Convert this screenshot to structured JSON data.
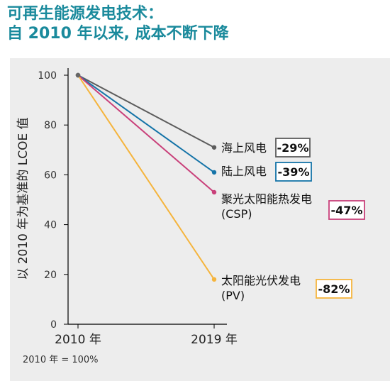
{
  "title_line1": "可再生能源发电技术：",
  "title_line2": "自  2010  年以来, 成本不断下降",
  "footnote": "2010 年 = 100%",
  "chart_data": {
    "type": "line",
    "title": "可再生能源发电技术： 自 2010 年以来, 成本不断下降",
    "ylabel": "以 2010 年为基准的 LCOE 值",
    "categories": [
      "2010 年",
      "2019 年"
    ],
    "ylim": [
      0,
      100
    ],
    "yticks": [
      0,
      20,
      40,
      60,
      80,
      100
    ],
    "series": [
      {
        "name": "海上风电",
        "label2": "",
        "values": [
          100,
          71
        ],
        "change": "-29%",
        "color": "#5c5c5c"
      },
      {
        "name": "陆上风电",
        "label2": "",
        "values": [
          100,
          61
        ],
        "change": "-39%",
        "color": "#1574a8"
      },
      {
        "name": "聚光太阳能热发电",
        "label2": "(CSP)",
        "values": [
          100,
          53
        ],
        "change": "-47%",
        "color": "#c9407a"
      },
      {
        "name": "太阳能光伏发电",
        "label2": "(PV)",
        "values": [
          100,
          18
        ],
        "change": "-82%",
        "color": "#f5b43c"
      }
    ]
  }
}
